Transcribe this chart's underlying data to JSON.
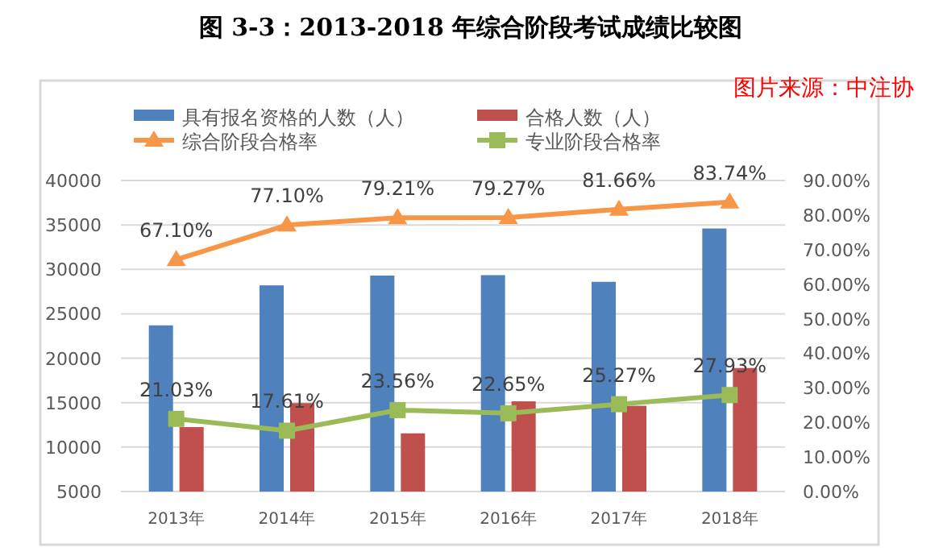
{
  "chart_data": {
    "type": "bar",
    "title": "图 3-3：2013-2018 年综合阶段考试成绩比较图",
    "categories": [
      "2013年",
      "2014年",
      "2015年",
      "2016年",
      "2017年",
      "2018年"
    ],
    "series": [
      {
        "name": "具有报名资格的人数（人）",
        "color": "#4f81bd",
        "values": [
          23700,
          28200,
          29300,
          29350,
          28600,
          34600
        ]
      },
      {
        "name": "合格人数（人）",
        "color": "#c0504d",
        "values": [
          12250,
          14950,
          11550,
          15150,
          14650,
          18900
        ]
      },
      {
        "name": "综合阶段合格率",
        "type": "line",
        "axis": "y2",
        "marker": "triangle",
        "color": "#f79646",
        "values": [
          67.1,
          77.1,
          79.21,
          79.27,
          81.66,
          83.74
        ],
        "value_labels": [
          "67.10%",
          "77.10%",
          "79.21%",
          "79.27%",
          "81.66%",
          "83.74%"
        ]
      },
      {
        "name": "专业阶段合格率",
        "type": "line",
        "axis": "y2",
        "marker": "square",
        "color": "#9bbb59",
        "values": [
          21.03,
          17.61,
          23.56,
          22.65,
          25.27,
          27.93
        ],
        "value_labels": [
          "21.03%",
          "17.61%",
          "23.56%",
          "22.65%",
          "25.27%",
          "27.93%"
        ]
      }
    ],
    "ylim": [
      5000,
      40000
    ],
    "yticks": [
      5000,
      10000,
      15000,
      20000,
      25000,
      30000,
      35000,
      40000
    ],
    "y2lim": [
      0,
      90
    ],
    "y2ticks": [
      {
        "value": 0,
        "label": "0.00%"
      },
      {
        "value": 10,
        "label": "10.00%"
      },
      {
        "value": 20,
        "label": "20.00%"
      },
      {
        "value": 30,
        "label": "30.00%"
      },
      {
        "value": 40,
        "label": "40.00%"
      },
      {
        "value": 50,
        "label": "50.00%"
      },
      {
        "value": 60,
        "label": "60.00%"
      },
      {
        "value": 70,
        "label": "70.00%"
      },
      {
        "value": 80,
        "label": "80.00%"
      },
      {
        "value": 90,
        "label": "90.00%"
      }
    ],
    "grid": "y",
    "legend": "top",
    "annotations": [
      "图片来源：中注协"
    ]
  }
}
